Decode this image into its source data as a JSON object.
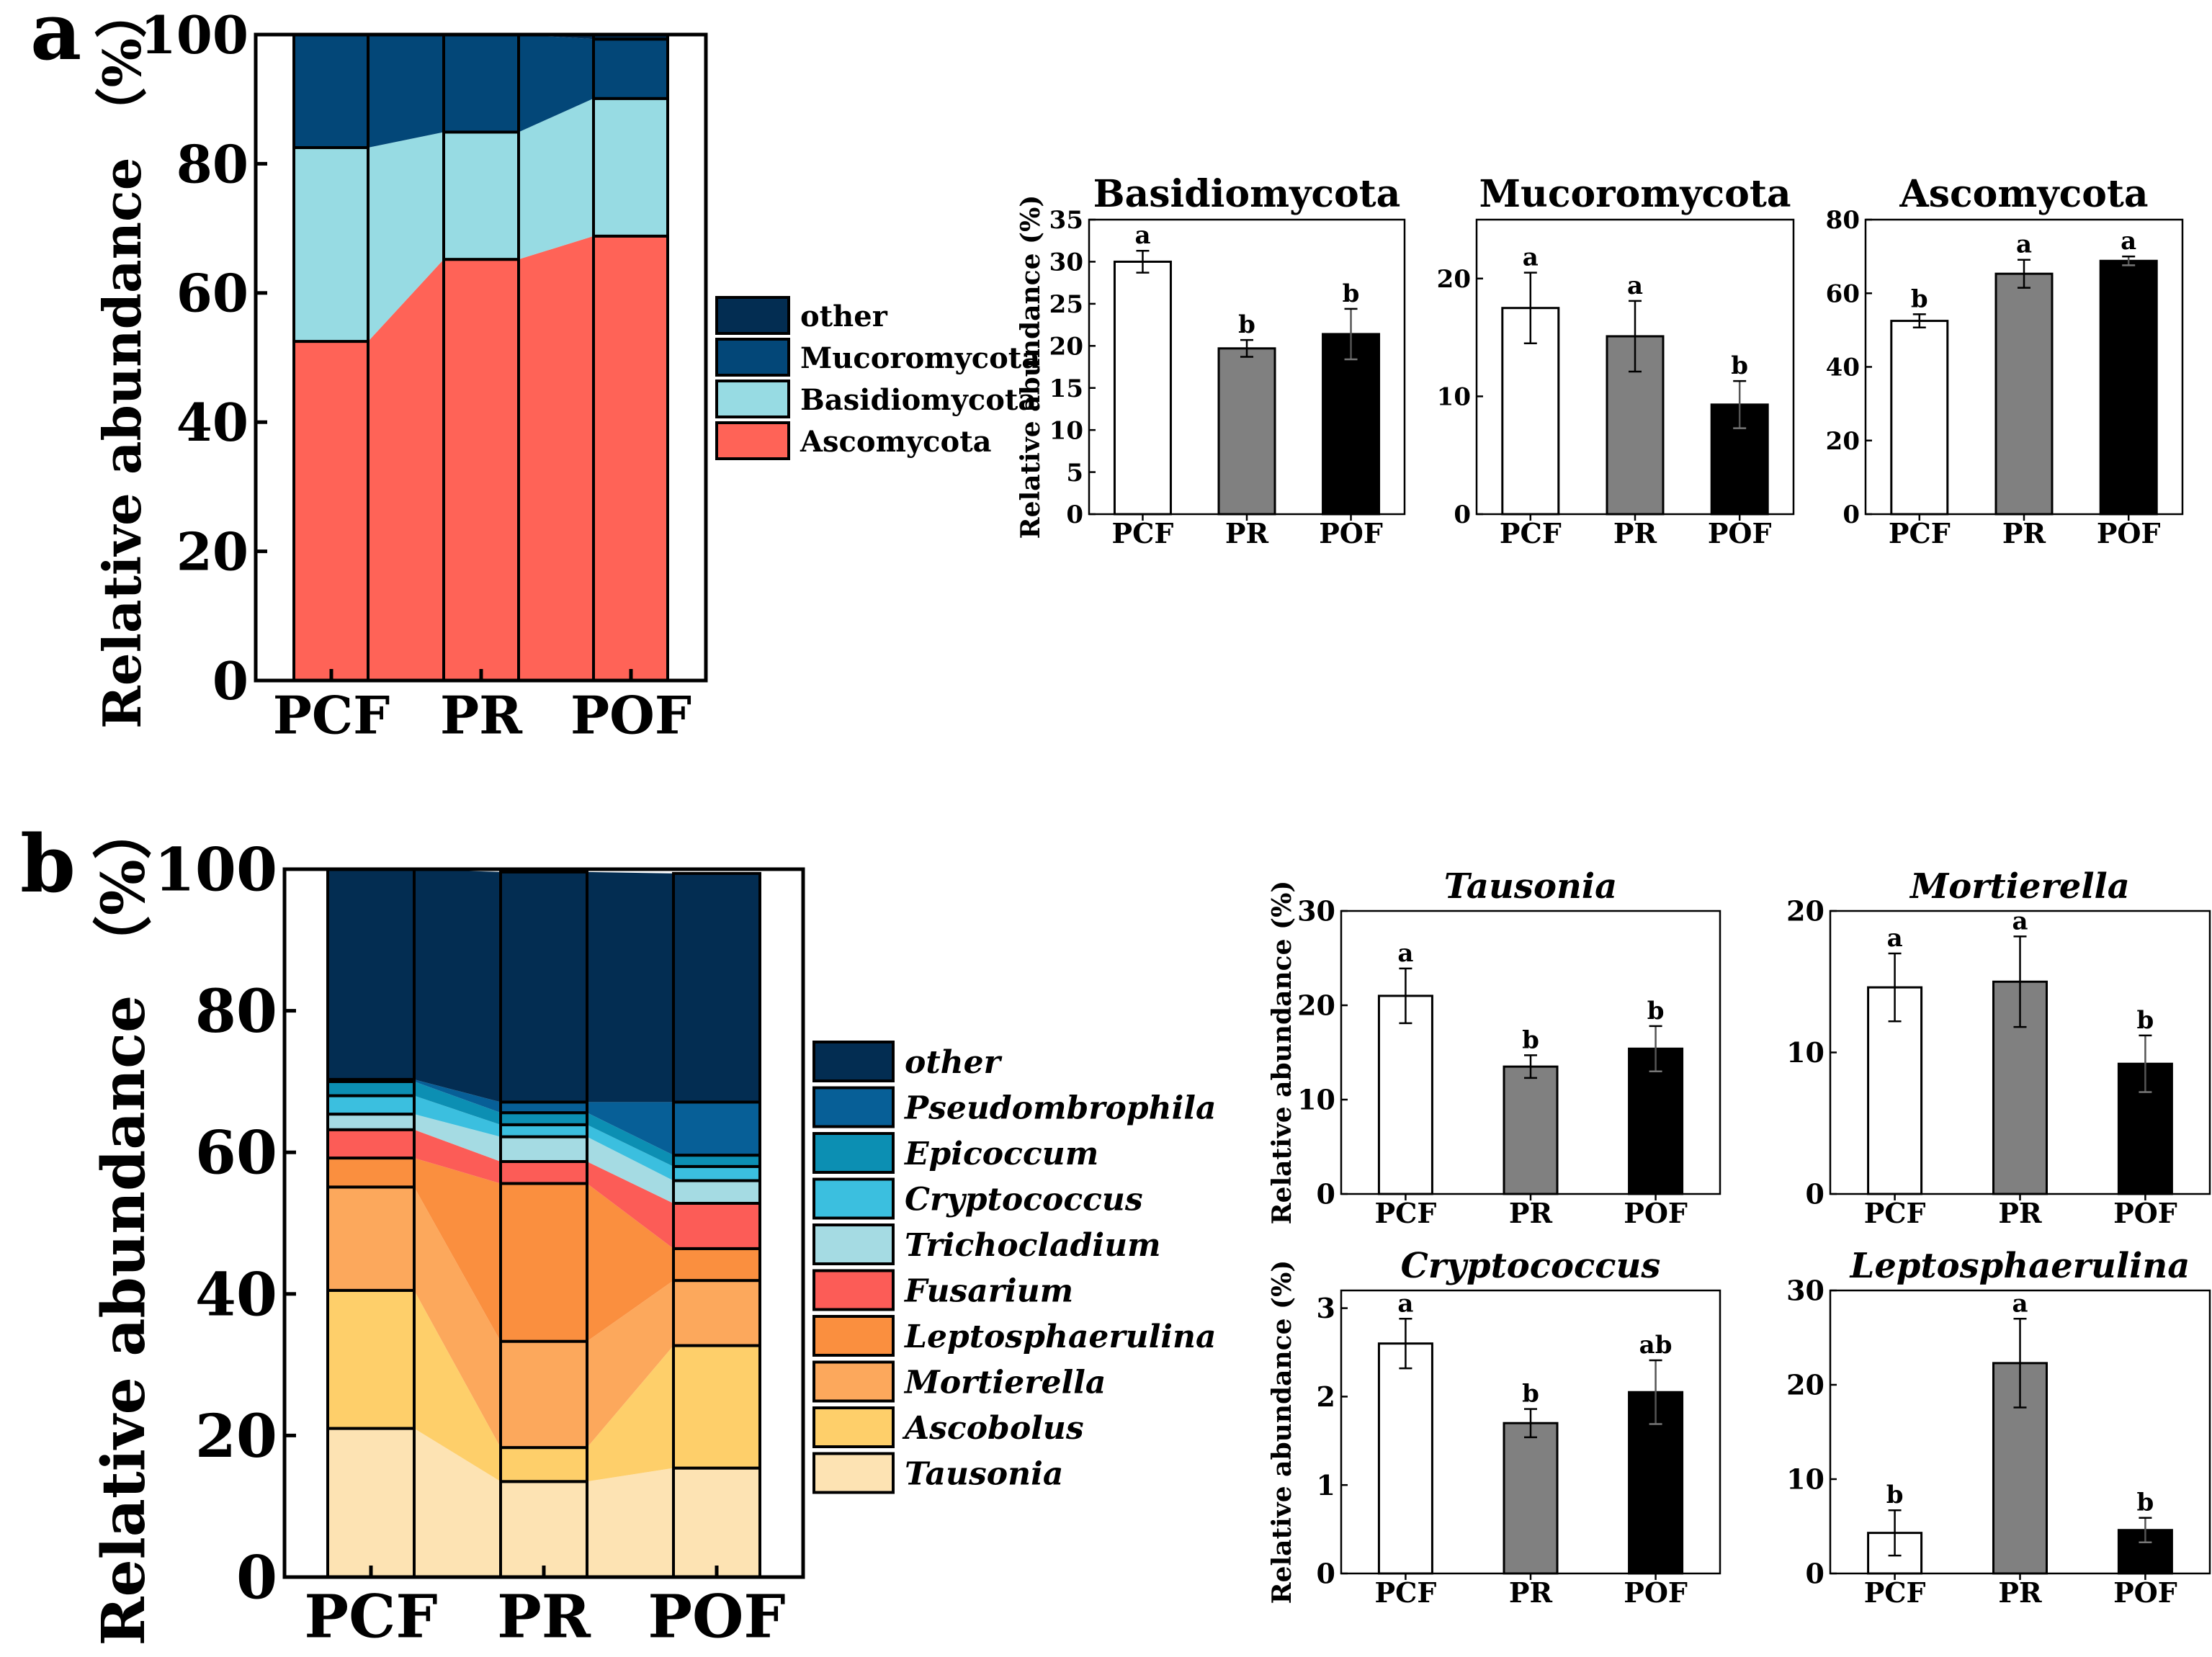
{
  "figure": {
    "panel_a_label": "a",
    "panel_b_label": "b"
  },
  "chart_data": [
    {
      "id": "a-stacked",
      "type": "bar",
      "stacked": true,
      "title": "",
      "xlabel": "",
      "ylabel": "Relative abundance （%）",
      "ylim": [
        0,
        100
      ],
      "yticks": [
        0,
        20,
        40,
        60,
        80,
        100
      ],
      "categories": [
        "PCF",
        "PR",
        "POF"
      ],
      "legend_position": "right",
      "series": [
        {
          "name": "Ascomycota",
          "color": "#ff6357",
          "italic": false,
          "values": [
            52.5,
            65.2,
            68.8
          ]
        },
        {
          "name": "Basidiomycota",
          "color": "#97dbe3",
          "italic": false,
          "values": [
            30.0,
            19.7,
            21.3
          ]
        },
        {
          "name": "Mucoromycota",
          "color": "#034778",
          "italic": false,
          "values": [
            17.5,
            15.1,
            9.2
          ]
        },
        {
          "name": "other",
          "color": "#032d52",
          "italic": false,
          "values": [
            0.0,
            0.0,
            0.7
          ]
        }
      ]
    },
    {
      "id": "a-basidiomycota",
      "type": "bar",
      "title": "Basidiomycota",
      "italic_title": false,
      "ylabel": "Relative abundance (%)",
      "ylim": [
        0,
        35
      ],
      "yticks": [
        0,
        5,
        10,
        15,
        20,
        25,
        30,
        35
      ],
      "categories": [
        "PCF",
        "PR",
        "POF"
      ],
      "values": [
        30.0,
        19.7,
        21.4
      ],
      "errors": [
        1.3,
        1.0,
        3.0
      ],
      "letters": [
        "a",
        "b",
        "b"
      ]
    },
    {
      "id": "a-mucoromycota",
      "type": "bar",
      "title": "Mucoromycota",
      "italic_title": false,
      "ylabel": "",
      "ylim": [
        0,
        25
      ],
      "yticks": [
        0,
        10,
        20
      ],
      "categories": [
        "PCF",
        "PR",
        "POF"
      ],
      "values": [
        17.5,
        15.1,
        9.3
      ],
      "errors": [
        3.0,
        3.0,
        2.0
      ],
      "letters": [
        "a",
        "a",
        "b"
      ]
    },
    {
      "id": "a-ascomycota",
      "type": "bar",
      "title": "Ascomycota",
      "italic_title": false,
      "ylabel": "",
      "ylim": [
        0,
        80
      ],
      "yticks": [
        0,
        20,
        40,
        60,
        80
      ],
      "categories": [
        "PCF",
        "PR",
        "POF"
      ],
      "values": [
        52.5,
        65.3,
        68.8
      ],
      "errors": [
        1.8,
        3.8,
        1.2
      ],
      "letters": [
        "b",
        "a",
        "a"
      ]
    },
    {
      "id": "b-stacked",
      "type": "bar",
      "stacked": true,
      "title": "",
      "xlabel": "",
      "ylabel": "Relative abundance （%）",
      "ylim": [
        0,
        100
      ],
      "yticks": [
        0,
        20,
        40,
        60,
        80,
        100
      ],
      "categories": [
        "PCF",
        "PR",
        "POF"
      ],
      "legend_position": "right",
      "series": [
        {
          "name": "Tausonia",
          "color": "#fde3b3",
          "italic": true,
          "values": [
            21.0,
            13.5,
            15.4
          ]
        },
        {
          "name": "Ascobolus",
          "color": "#fecf6a",
          "italic": true,
          "values": [
            19.5,
            4.8,
            17.3
          ]
        },
        {
          "name": "Mortierella",
          "color": "#fca85c",
          "italic": true,
          "values": [
            14.6,
            15.0,
            9.2
          ]
        },
        {
          "name": "Leptosphaerulina",
          "color": "#fa8f3f",
          "italic": true,
          "values": [
            4.1,
            22.3,
            4.5
          ]
        },
        {
          "name": "Fusarium",
          "color": "#fc5c57",
          "italic": true,
          "values": [
            4.0,
            3.1,
            6.4
          ]
        },
        {
          "name": "Trichocladium",
          "color": "#a5dbe3",
          "italic": true,
          "values": [
            2.2,
            3.5,
            3.2
          ]
        },
        {
          "name": "Cryptococcus",
          "color": "#3bbfdf",
          "italic": true,
          "values": [
            2.6,
            1.7,
            2.0
          ]
        },
        {
          "name": "Epicoccum",
          "color": "#0c8fb3",
          "italic": true,
          "values": [
            2.0,
            1.7,
            1.6
          ]
        },
        {
          "name": "Pseudombrophila",
          "color": "#075f97",
          "italic": true,
          "values": [
            0.3,
            1.5,
            7.5
          ]
        },
        {
          "name": "other",
          "color": "#032d52",
          "italic": true,
          "values": [
            29.7,
            32.5,
            32.3
          ]
        }
      ]
    },
    {
      "id": "b-tausonia",
      "type": "bar",
      "title": "Tausonia",
      "italic_title": true,
      "ylabel": "Relative abundance (%)",
      "ylim": [
        0,
        30
      ],
      "yticks": [
        0,
        10,
        20,
        30
      ],
      "categories": [
        "PCF",
        "PR",
        "POF"
      ],
      "values": [
        21.0,
        13.5,
        15.4
      ],
      "errors": [
        2.9,
        1.2,
        2.4
      ],
      "letters": [
        "a",
        "b",
        "b"
      ]
    },
    {
      "id": "b-mortierella",
      "type": "bar",
      "title": "Mortierella",
      "italic_title": true,
      "ylabel": "",
      "ylim": [
        0,
        20
      ],
      "yticks": [
        0,
        10,
        20
      ],
      "categories": [
        "PCF",
        "PR",
        "POF"
      ],
      "values": [
        14.6,
        15.0,
        9.2
      ],
      "errors": [
        2.4,
        3.2,
        2.0
      ],
      "letters": [
        "a",
        "a",
        "b"
      ]
    },
    {
      "id": "b-cryptococcus",
      "type": "bar",
      "title": "Cryptococcus",
      "italic_title": true,
      "ylabel": "Relative abundance (%)",
      "ylim": [
        0,
        3.2
      ],
      "yticks": [
        0,
        1,
        2,
        3
      ],
      "categories": [
        "PCF",
        "PR",
        "POF"
      ],
      "values": [
        2.6,
        1.7,
        2.05
      ],
      "errors": [
        0.28,
        0.16,
        0.36
      ],
      "letters": [
        "a",
        "b",
        "ab"
      ]
    },
    {
      "id": "b-leptosphaerulina",
      "type": "bar",
      "title": "Leptosphaerulina",
      "italic_title": true,
      "ylabel": "",
      "ylim": [
        0,
        30
      ],
      "yticks": [
        0,
        10,
        20,
        30
      ],
      "categories": [
        "PCF",
        "PR",
        "POF"
      ],
      "values": [
        4.3,
        22.3,
        4.6
      ],
      "errors": [
        2.4,
        4.7,
        1.3
      ],
      "letters": [
        "b",
        "a",
        "b"
      ]
    }
  ]
}
